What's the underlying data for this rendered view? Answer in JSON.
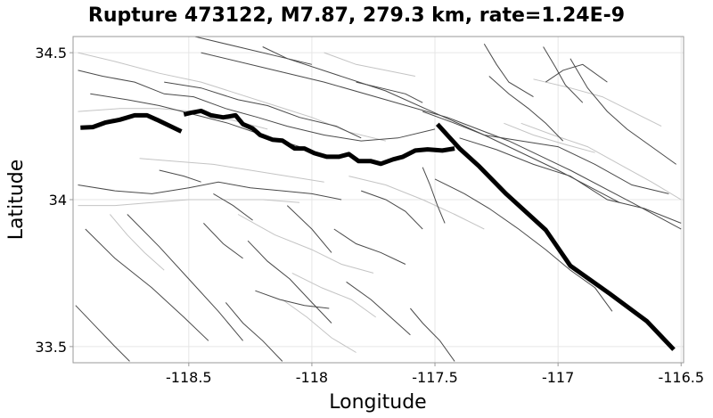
{
  "chart_data": {
    "type": "map",
    "title": "Rupture 473122, M7.87, 279.3 km, rate=1.24E-9",
    "xlabel": "Longitude",
    "ylabel": "Latitude",
    "xlim": [
      -118.97,
      -116.49
    ],
    "ylim": [
      33.445,
      34.555
    ],
    "xticks": [
      -118.5,
      -118,
      -117.5,
      -117,
      -116.5
    ],
    "xtick_labels": [
      "-118.5",
      "-118",
      "-117.5",
      "-117",
      "-116.5"
    ],
    "yticks": [
      33.5,
      34,
      34.5
    ],
    "ytick_labels": [
      "33.5",
      "34",
      "34.5"
    ],
    "grid": true,
    "rupture_traces": [
      [
        [
          -118.94,
          34.245
        ],
        [
          -118.89,
          34.247
        ],
        [
          -118.84,
          34.262
        ],
        [
          -118.78,
          34.272
        ],
        [
          -118.72,
          34.287
        ],
        [
          -118.67,
          34.287
        ],
        [
          -118.63,
          34.272
        ],
        [
          -118.58,
          34.252
        ],
        [
          -118.53,
          34.232
        ]
      ],
      [
        [
          -118.52,
          34.29
        ],
        [
          -118.49,
          34.296
        ],
        [
          -118.45,
          34.302
        ],
        [
          -118.41,
          34.287
        ],
        [
          -118.36,
          34.28
        ],
        [
          -118.31,
          34.287
        ],
        [
          -118.28,
          34.257
        ],
        [
          -118.24,
          34.242
        ],
        [
          -118.21,
          34.22
        ],
        [
          -118.16,
          34.204
        ],
        [
          -118.12,
          34.201
        ],
        [
          -118.07,
          34.174
        ],
        [
          -118.03,
          34.174
        ],
        [
          -117.99,
          34.158
        ],
        [
          -117.94,
          34.146
        ],
        [
          -117.89,
          34.146
        ],
        [
          -117.85,
          34.155
        ],
        [
          -117.81,
          34.131
        ],
        [
          -117.76,
          34.131
        ],
        [
          -117.72,
          34.122
        ],
        [
          -117.67,
          34.137
        ],
        [
          -117.63,
          34.146
        ],
        [
          -117.58,
          34.167
        ],
        [
          -117.53,
          34.171
        ],
        [
          -117.47,
          34.167
        ],
        [
          -117.42,
          34.174
        ]
      ],
      [
        [
          -117.49,
          34.257
        ],
        [
          -117.4,
          34.174
        ],
        [
          -117.32,
          34.113
        ],
        [
          -117.21,
          34.019
        ],
        [
          -117.05,
          33.897
        ],
        [
          -116.95,
          33.775
        ],
        [
          -116.79,
          33.68
        ],
        [
          -116.64,
          33.587
        ],
        [
          -116.53,
          33.49
        ]
      ]
    ],
    "fault_traces": [
      [
        [
          -118.95,
          34.44
        ],
        [
          -118.85,
          34.42
        ],
        [
          -118.72,
          34.4
        ],
        [
          -118.6,
          34.36
        ],
        [
          -118.48,
          34.35
        ],
        [
          -118.35,
          34.31
        ],
        [
          -118.22,
          34.28
        ],
        [
          -118.1,
          34.25
        ],
        [
          -117.95,
          34.22
        ],
        [
          -117.8,
          34.2
        ],
        [
          -117.65,
          34.21
        ],
        [
          -117.5,
          34.24
        ]
      ],
      [
        [
          -118.9,
          34.36
        ],
        [
          -118.75,
          34.34
        ],
        [
          -118.62,
          34.32
        ],
        [
          -118.48,
          34.29
        ],
        [
          -118.34,
          34.26
        ],
        [
          -118.2,
          34.22
        ],
        [
          -118.05,
          34.18
        ]
      ],
      [
        [
          -118.95,
          34.05
        ],
        [
          -118.8,
          34.03
        ],
        [
          -118.65,
          34.02
        ],
        [
          -118.5,
          34.04
        ],
        [
          -118.38,
          34.06
        ],
        [
          -118.25,
          34.04
        ],
        [
          -118.12,
          34.03
        ],
        [
          -118.0,
          34.02
        ],
        [
          -117.88,
          34.0
        ]
      ],
      [
        [
          -118.6,
          34.4
        ],
        [
          -118.45,
          34.38
        ],
        [
          -118.3,
          34.34
        ],
        [
          -118.18,
          34.32
        ],
        [
          -118.05,
          34.28
        ],
        [
          -117.9,
          34.25
        ],
        [
          -117.8,
          34.21
        ]
      ],
      [
        [
          -118.45,
          34.5
        ],
        [
          -118.2,
          34.45
        ],
        [
          -117.95,
          34.4
        ],
        [
          -117.7,
          34.34
        ],
        [
          -117.45,
          34.28
        ],
        [
          -117.2,
          34.2
        ],
        [
          -116.95,
          34.1
        ],
        [
          -116.7,
          33.99
        ],
        [
          -116.5,
          33.9
        ]
      ],
      [
        [
          -118.5,
          34.56
        ],
        [
          -118.1,
          34.48
        ],
        [
          -117.7,
          34.37
        ],
        [
          -117.3,
          34.22
        ],
        [
          -117.0,
          34.1
        ],
        [
          -116.75,
          33.99
        ]
      ],
      [
        [
          -117.4,
          34.21
        ],
        [
          -117.25,
          34.17
        ],
        [
          -117.1,
          34.12
        ],
        [
          -116.95,
          34.08
        ],
        [
          -116.8,
          34.0
        ],
        [
          -116.65,
          33.97
        ],
        [
          -116.5,
          33.92
        ]
      ],
      [
        [
          -117.55,
          34.3
        ],
        [
          -117.42,
          34.26
        ],
        [
          -117.3,
          34.22
        ],
        [
          -117.15,
          34.2
        ],
        [
          -117.0,
          34.18
        ],
        [
          -116.85,
          34.12
        ],
        [
          -116.7,
          34.05
        ],
        [
          -116.55,
          34.02
        ]
      ],
      [
        [
          -117.5,
          34.07
        ],
        [
          -117.38,
          34.02
        ],
        [
          -117.28,
          33.97
        ],
        [
          -117.16,
          33.9
        ],
        [
          -117.05,
          33.83
        ],
        [
          -116.95,
          33.76
        ],
        [
          -116.85,
          33.7
        ],
        [
          -116.78,
          33.62
        ]
      ],
      [
        [
          -117.28,
          34.42
        ],
        [
          -117.2,
          34.36
        ],
        [
          -117.12,
          34.31
        ],
        [
          -117.05,
          34.26
        ],
        [
          -116.98,
          34.2
        ]
      ],
      [
        [
          -117.3,
          34.53
        ],
        [
          -117.25,
          34.46
        ],
        [
          -117.2,
          34.4
        ],
        [
          -117.1,
          34.35
        ]
      ],
      [
        [
          -116.95,
          34.48
        ],
        [
          -116.88,
          34.38
        ],
        [
          -116.8,
          34.3
        ],
        [
          -116.72,
          34.24
        ],
        [
          -116.62,
          34.18
        ],
        [
          -116.52,
          34.12
        ]
      ],
      [
        [
          -117.06,
          34.52
        ],
        [
          -117.01,
          34.45
        ],
        [
          -116.97,
          34.39
        ],
        [
          -116.9,
          34.33
        ]
      ],
      [
        [
          -118.92,
          33.9
        ],
        [
          -118.8,
          33.8
        ],
        [
          -118.65,
          33.7
        ],
        [
          -118.52,
          33.6
        ],
        [
          -118.42,
          33.52
        ]
      ],
      [
        [
          -118.75,
          33.95
        ],
        [
          -118.62,
          33.84
        ],
        [
          -118.5,
          33.73
        ],
        [
          -118.38,
          33.62
        ],
        [
          -118.28,
          33.52
        ]
      ],
      [
        [
          -118.96,
          33.64
        ],
        [
          -118.88,
          33.57
        ],
        [
          -118.8,
          33.5
        ],
        [
          -118.74,
          33.45
        ]
      ],
      [
        [
          -118.35,
          33.65
        ],
        [
          -118.28,
          33.58
        ],
        [
          -118.2,
          33.52
        ],
        [
          -118.12,
          33.45
        ]
      ],
      [
        [
          -118.26,
          33.86
        ],
        [
          -118.18,
          33.79
        ],
        [
          -118.09,
          33.73
        ],
        [
          -118.0,
          33.65
        ],
        [
          -117.92,
          33.58
        ]
      ],
      [
        [
          -118.1,
          33.98
        ],
        [
          -118.0,
          33.9
        ],
        [
          -117.92,
          33.82
        ]
      ],
      [
        [
          -118.44,
          33.92
        ],
        [
          -118.36,
          33.85
        ],
        [
          -118.28,
          33.8
        ]
      ],
      [
        [
          -118.4,
          34.02
        ],
        [
          -118.32,
          33.98
        ],
        [
          -118.24,
          33.93
        ]
      ],
      [
        [
          -117.91,
          33.9
        ],
        [
          -117.82,
          33.85
        ],
        [
          -117.72,
          33.82
        ],
        [
          -117.62,
          33.78
        ]
      ],
      [
        [
          -118.23,
          33.69
        ],
        [
          -118.13,
          33.66
        ],
        [
          -118.03,
          33.64
        ],
        [
          -117.93,
          33.63
        ]
      ],
      [
        [
          -117.6,
          33.63
        ],
        [
          -117.55,
          33.58
        ],
        [
          -117.48,
          33.52
        ],
        [
          -117.42,
          33.45
        ]
      ],
      [
        [
          -117.86,
          33.72
        ],
        [
          -117.76,
          33.66
        ],
        [
          -117.68,
          33.6
        ],
        [
          -117.6,
          33.54
        ]
      ],
      [
        [
          -117.55,
          34.11
        ],
        [
          -117.52,
          34.05
        ],
        [
          -117.49,
          33.98
        ],
        [
          -117.46,
          33.92
        ]
      ],
      [
        [
          -117.8,
          34.03
        ],
        [
          -117.7,
          34.0
        ],
        [
          -117.62,
          33.96
        ],
        [
          -117.55,
          33.9
        ]
      ],
      [
        [
          -118.62,
          34.1
        ],
        [
          -118.52,
          34.08
        ],
        [
          -118.45,
          34.06
        ]
      ],
      [
        [
          -117.82,
          34.4
        ],
        [
          -117.72,
          34.38
        ],
        [
          -117.62,
          34.36
        ],
        [
          -117.55,
          34.33
        ]
      ],
      [
        [
          -118.2,
          34.52
        ],
        [
          -118.1,
          34.48
        ],
        [
          -118.0,
          34.46
        ]
      ],
      [
        [
          -117.05,
          34.4
        ],
        [
          -116.98,
          34.44
        ],
        [
          -116.9,
          34.46
        ],
        [
          -116.8,
          34.4
        ]
      ]
    ],
    "subsection_traces": [
      [
        [
          -118.95,
          34.5
        ],
        [
          -118.8,
          34.47
        ],
        [
          -118.62,
          34.43
        ],
        [
          -118.45,
          34.4
        ],
        [
          -118.3,
          34.36
        ],
        [
          -118.15,
          34.32
        ],
        [
          -118.0,
          34.28
        ],
        [
          -117.85,
          34.23
        ],
        [
          -117.7,
          34.2
        ]
      ],
      [
        [
          -118.95,
          34.3
        ],
        [
          -118.78,
          34.31
        ],
        [
          -118.62,
          34.31
        ],
        [
          -118.48,
          34.3
        ],
        [
          -118.32,
          34.27
        ],
        [
          -118.18,
          34.24
        ]
      ],
      [
        [
          -118.95,
          33.98
        ],
        [
          -118.8,
          33.98
        ],
        [
          -118.65,
          33.99
        ],
        [
          -118.5,
          34.0
        ],
        [
          -118.35,
          34.0
        ],
        [
          -118.2,
          34.0
        ],
        [
          -118.05,
          33.99
        ]
      ],
      [
        [
          -118.7,
          34.14
        ],
        [
          -118.55,
          34.13
        ],
        [
          -118.4,
          34.12
        ],
        [
          -118.25,
          34.1
        ],
        [
          -118.1,
          34.08
        ],
        [
          -117.95,
          34.06
        ]
      ],
      [
        [
          -117.85,
          34.08
        ],
        [
          -117.7,
          34.05
        ],
        [
          -117.55,
          34.0
        ],
        [
          -117.42,
          33.95
        ],
        [
          -117.3,
          33.9
        ]
      ],
      [
        [
          -117.15,
          34.26
        ],
        [
          -117.02,
          34.22
        ],
        [
          -116.88,
          34.18
        ],
        [
          -116.75,
          34.12
        ],
        [
          -116.62,
          34.06
        ],
        [
          -116.5,
          34.0
        ]
      ],
      [
        [
          -117.1,
          34.41
        ],
        [
          -116.95,
          34.38
        ],
        [
          -116.82,
          34.35
        ],
        [
          -116.7,
          34.3
        ],
        [
          -116.58,
          34.25
        ]
      ],
      [
        [
          -117.22,
          34.26
        ],
        [
          -117.1,
          34.22
        ],
        [
          -116.98,
          34.19
        ],
        [
          -116.85,
          34.16
        ]
      ],
      [
        [
          -118.3,
          33.95
        ],
        [
          -118.15,
          33.88
        ],
        [
          -118.0,
          33.83
        ],
        [
          -117.88,
          33.78
        ],
        [
          -117.75,
          33.75
        ]
      ],
      [
        [
          -118.08,
          33.75
        ],
        [
          -117.96,
          33.7
        ],
        [
          -117.84,
          33.66
        ],
        [
          -117.74,
          33.6
        ]
      ],
      [
        [
          -118.12,
          33.66
        ],
        [
          -118.02,
          33.6
        ],
        [
          -117.92,
          33.53
        ],
        [
          -117.82,
          33.48
        ]
      ],
      [
        [
          -118.82,
          33.95
        ],
        [
          -118.75,
          33.88
        ],
        [
          -118.68,
          33.82
        ],
        [
          -118.6,
          33.76
        ]
      ],
      [
        [
          -117.95,
          34.5
        ],
        [
          -117.82,
          34.46
        ],
        [
          -117.7,
          34.44
        ],
        [
          -117.58,
          34.42
        ]
      ]
    ]
  }
}
